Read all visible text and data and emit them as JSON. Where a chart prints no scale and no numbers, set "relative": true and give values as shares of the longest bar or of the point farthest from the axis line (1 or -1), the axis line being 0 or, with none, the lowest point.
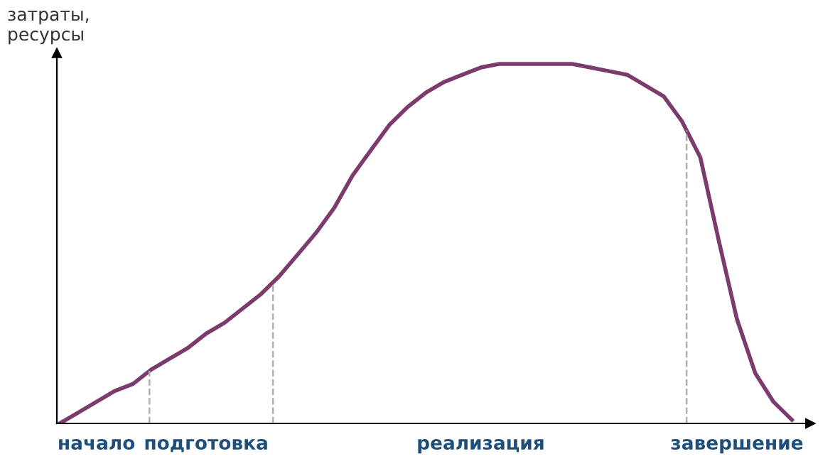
{
  "chart_data": {
    "type": "line",
    "relative": true,
    "ylabel": "затраты,\nресурсы",
    "categories": [
      null,
      null,
      "начало",
      null,
      null,
      null,
      null,
      null,
      "подготовка",
      null,
      null,
      null,
      null,
      null,
      null,
      null,
      null,
      null,
      null,
      null,
      null,
      null,
      null,
      "реализация",
      null,
      null,
      null,
      null,
      null,
      null,
      null,
      null,
      null,
      null,
      null,
      null,
      null,
      "завершение",
      null,
      null,
      null
    ],
    "series": [
      {
        "color": "#7b3b6c",
        "values": [
          0,
          0.03,
          0.06,
          0.09,
          0.11,
          0.15,
          0.18,
          0.21,
          0.25,
          0.28,
          0.32,
          0.36,
          0.41,
          0.47,
          0.53,
          0.6,
          0.69,
          0.76,
          0.83,
          0.88,
          0.92,
          0.95,
          0.97,
          0.99,
          1.0,
          1,
          1,
          1,
          1.0,
          0.99,
          0.98,
          0.97,
          0.94,
          0.91,
          0.84,
          0.74,
          0.51,
          0.29,
          0.14,
          0.06,
          0.01
        ]
      }
    ],
    "legend": false,
    "marker": "none",
    "line_style": "solid"
  }
}
